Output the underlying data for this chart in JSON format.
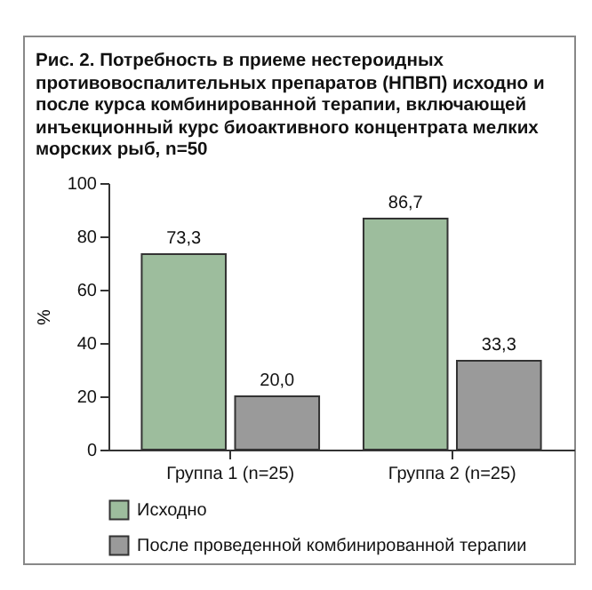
{
  "chart_data": {
    "type": "bar",
    "title": "Рис. 2. Потребность в приеме нестероидных противовоспалительных препаратов (НПВП) исходно и после курса комбинированной терапии, включающей инъекционный курс биоактивного концентрата мелких морских рыб, n=50",
    "categories": [
      "Группа 1 (n=25)",
      "Группа 2 (n=25)"
    ],
    "ylabel": "%",
    "ylim": [
      0,
      100
    ],
    "yticks": [
      0,
      20,
      40,
      60,
      80,
      100
    ],
    "grid": false,
    "legend": "bottom",
    "series": [
      {
        "name": "Исходно",
        "color": "#9dbd9d",
        "values": [
          73.3,
          86.7
        ],
        "value_labels": [
          "73,3",
          "86,7"
        ]
      },
      {
        "name": "После проведенной комбинированной терапии",
        "color": "#9a9a9a",
        "values": [
          20.0,
          33.3
        ],
        "value_labels": [
          "20,0",
          "33,3"
        ]
      }
    ]
  }
}
